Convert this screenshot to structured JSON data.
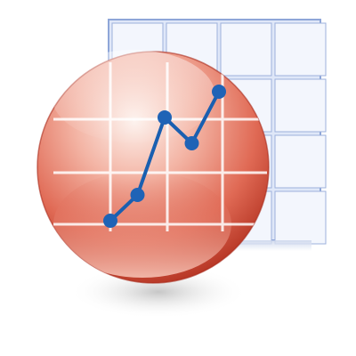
{
  "icon": {
    "name": "spreadsheet-chart-app-icon",
    "colors": {
      "sheet_fill": "#dbe4f7",
      "sheet_line": "#8ea6d8",
      "sheet_cell": "#f4f7fd",
      "sphere_light": "#fbe4dc",
      "sphere_mid": "#e8806d",
      "sphere_dark": "#b8321f",
      "chart_line": "#1a5fb0",
      "chart_point": "#1f63b6",
      "chart_grid": "#ffffff",
      "shadow": "#c9c9c9"
    },
    "chart_points": [
      {
        "x": 1,
        "y": 1
      },
      {
        "x": 2,
        "y": 2
      },
      {
        "x": 3,
        "y": 5
      },
      {
        "x": 4,
        "y": 4
      },
      {
        "x": 5,
        "y": 6
      }
    ]
  }
}
